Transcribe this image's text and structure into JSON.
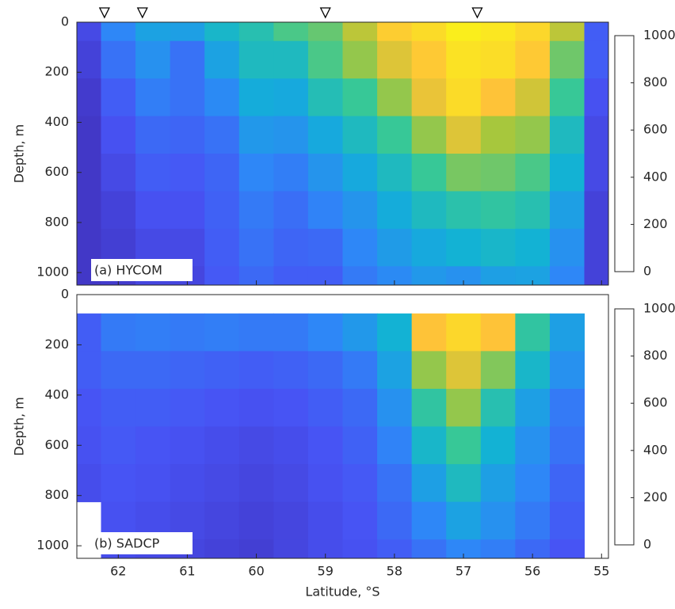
{
  "chart_data": [
    {
      "type": "heatmap",
      "label": "(a) HYCOM",
      "ylabel": "Depth, m",
      "x": [
        62.5,
        62,
        61.5,
        61,
        60.5,
        60,
        59.5,
        59,
        58.5,
        58,
        57.5,
        57,
        56.5,
        56,
        55.5,
        55
      ],
      "y": [
        0,
        150,
        300,
        450,
        600,
        750,
        900,
        1050
      ],
      "values": [
        [
          100,
          80,
          60,
          50,
          50,
          50,
          50,
          50
        ],
        [
          250,
          200,
          150,
          120,
          100,
          80,
          70,
          60
        ],
        [
          330,
          280,
          230,
          180,
          150,
          120,
          100,
          90
        ],
        [
          320,
          200,
          200,
          170,
          140,
          120,
          100,
          90
        ],
        [
          400,
          330,
          260,
          200,
          170,
          160,
          150,
          140
        ],
        [
          450,
          420,
          360,
          300,
          250,
          220,
          200,
          180
        ],
        [
          520,
          420,
          350,
          290,
          230,
          190,
          170,
          150
        ],
        [
          550,
          520,
          440,
          350,
          290,
          240,
          180,
          150
        ],
        [
          650,
          600,
          500,
          420,
          350,
          290,
          250,
          220
        ],
        [
          800,
          700,
          600,
          500,
          420,
          360,
          310,
          260
        ],
        [
          870,
          780,
          720,
          600,
          500,
          420,
          350,
          300
        ],
        [
          950,
          900,
          870,
          700,
          570,
          460,
          380,
          280
        ],
        [
          920,
          880,
          750,
          620,
          560,
          480,
          400,
          320
        ],
        [
          850,
          780,
          680,
          600,
          520,
          450,
          380,
          330
        ],
        [
          650,
          560,
          500,
          420,
          380,
          320,
          280,
          250
        ],
        [
          150,
          150,
          120,
          100,
          100,
          80,
          80,
          80
        ]
      ],
      "markers_x": [
        62.2,
        61.65,
        59,
        56.8
      ],
      "xlim": [
        62.6,
        54.9
      ],
      "xticks": [
        62,
        61,
        60,
        59,
        58,
        57,
        56,
        55
      ],
      "ylim": [
        0,
        1050
      ],
      "yticks": [
        0,
        200,
        400,
        600,
        800,
        1000
      ],
      "clim": [
        0,
        1000
      ],
      "cticks": [
        0,
        200,
        400,
        600,
        800,
        1000
      ]
    },
    {
      "type": "heatmap",
      "label": "(b) SADCP",
      "ylabel": "Depth, m",
      "xlabel": "Latitude, °S",
      "x": [
        62.5,
        62,
        61.5,
        61,
        60.5,
        60,
        59.5,
        59,
        58.5,
        58,
        57.5,
        57,
        56.5,
        56,
        55.5,
        55
      ],
      "y": [
        0,
        150,
        300,
        450,
        600,
        750,
        900,
        1050
      ],
      "values": [
        [
          null,
          150,
          150,
          130,
          120,
          110,
          null,
          null
        ],
        [
          null,
          220,
          180,
          150,
          140,
          130,
          120,
          110
        ],
        [
          null,
          230,
          180,
          150,
          130,
          120,
          110,
          100
        ],
        [
          null,
          220,
          170,
          140,
          120,
          110,
          100,
          90
        ],
        [
          null,
          230,
          160,
          130,
          110,
          100,
          90,
          80
        ],
        [
          null,
          220,
          150,
          120,
          100,
          90,
          80,
          70
        ],
        [
          null,
          220,
          160,
          130,
          110,
          100,
          90,
          90
        ],
        [
          null,
          250,
          180,
          150,
          130,
          120,
          110,
          110
        ],
        [
          null,
          300,
          220,
          180,
          160,
          140,
          130,
          120
        ],
        [
          null,
          380,
          330,
          280,
          240,
          200,
          180,
          150
        ],
        [
          null,
          750,
          600,
          480,
          400,
          320,
          250,
          200
        ],
        [
          null,
          850,
          700,
          600,
          500,
          420,
          330,
          250
        ],
        [
          null,
          750,
          580,
          450,
          380,
          320,
          280,
          230
        ],
        [
          null,
          480,
          400,
          320,
          280,
          250,
          220,
          180
        ],
        [
          null,
          320,
          280,
          220,
          200,
          170,
          150,
          130
        ],
        [
          null,
          null,
          null,
          null,
          null,
          null,
          null,
          null
        ]
      ],
      "xlim": [
        62.6,
        54.9
      ],
      "xticks": [
        62,
        61,
        60,
        59,
        58,
        57,
        56,
        55
      ],
      "ylim": [
        0,
        1050
      ],
      "yticks": [
        0,
        200,
        400,
        600,
        800,
        1000
      ],
      "clim": [
        0,
        1000
      ],
      "cticks": [
        0,
        200,
        400,
        600,
        800,
        1000
      ]
    }
  ]
}
